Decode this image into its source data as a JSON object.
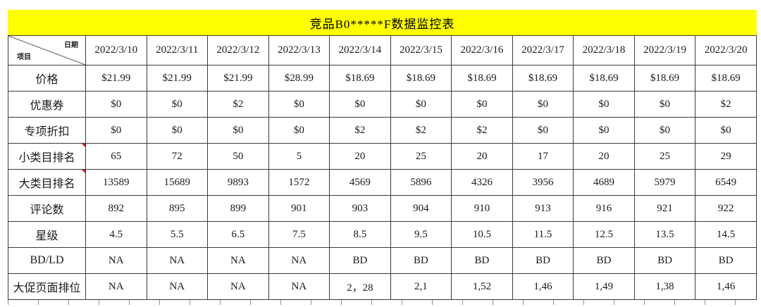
{
  "title": "竞品B0*****F数据监控表",
  "colors": {
    "title_bg": "#ffff00",
    "border": "#3a3a3a",
    "comment_marker": "#ff0000"
  },
  "table": {
    "corner": {
      "top_right": "日期",
      "bottom_left": "项目"
    },
    "dates": [
      "2022/3/10",
      "2022/3/11",
      "2022/3/12",
      "2022/3/13",
      "2022/3/14",
      "2022/3/15",
      "2022/3/16",
      "2022/3/17",
      "2022/3/18",
      "2022/3/19",
      "2022/3/20"
    ],
    "rows": [
      {
        "label": "价格",
        "comment": false,
        "values": [
          "$21.99",
          "$21.99",
          "$21.99",
          "$28.99",
          "$18.69",
          "$18.69",
          "$18.69",
          "$18.69",
          "$18.69",
          "$18.69",
          "$18.69"
        ]
      },
      {
        "label": "优惠券",
        "comment": false,
        "values": [
          "$0",
          "$0",
          "$2",
          "$0",
          "$0",
          "$0",
          "$0",
          "$0",
          "$0",
          "$0",
          "$2"
        ]
      },
      {
        "label": "专项折扣",
        "comment": false,
        "values": [
          "$0",
          "$0",
          "$0",
          "$0",
          "$2",
          "$2",
          "$2",
          "$0",
          "$0",
          "$0",
          "$0"
        ]
      },
      {
        "label": "小类目排名",
        "comment": true,
        "values": [
          "65",
          "72",
          "50",
          "5",
          "20",
          "25",
          "20",
          "17",
          "20",
          "25",
          "29"
        ]
      },
      {
        "label": "大类目排名",
        "comment": true,
        "values": [
          "13589",
          "15689",
          "9893",
          "1572",
          "4569",
          "5896",
          "4326",
          "3956",
          "4689",
          "5979",
          "6549"
        ]
      },
      {
        "label": "评论数",
        "comment": false,
        "values": [
          "892",
          "895",
          "899",
          "901",
          "903",
          "904",
          "910",
          "913",
          "916",
          "921",
          "922"
        ]
      },
      {
        "label": "星级",
        "comment": false,
        "values": [
          "4.5",
          "5.5",
          "6.5",
          "7.5",
          "8.5",
          "9.5",
          "10.5",
          "11.5",
          "12.5",
          "13.5",
          "14.5"
        ]
      },
      {
        "label": "BD/LD",
        "comment": false,
        "values": [
          "NA",
          "NA",
          "NA",
          "NA",
          "BD",
          "BD",
          "BD",
          "BD",
          "BD",
          "BD",
          "BD"
        ]
      },
      {
        "label": "大促页面排位",
        "comment": false,
        "values": [
          "NA",
          "NA",
          "NA",
          "NA",
          "2，28",
          "2,1",
          "1,52",
          "1,46",
          "1,49",
          "1,38",
          "1,46"
        ]
      }
    ]
  }
}
